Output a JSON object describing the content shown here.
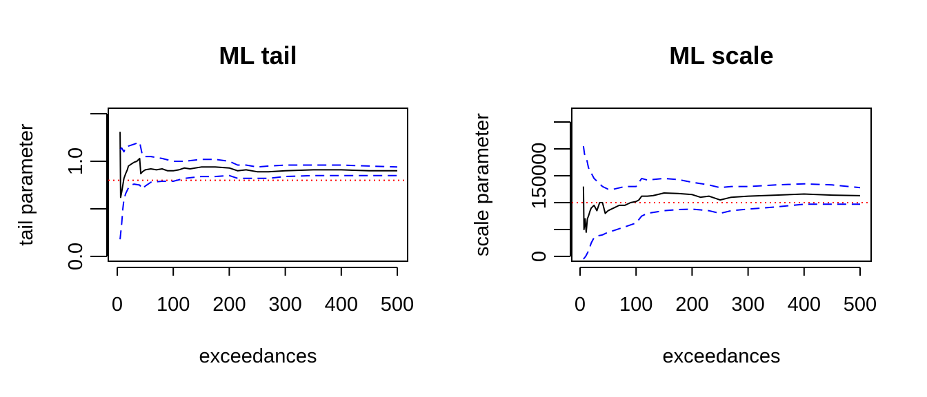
{
  "chart_data": [
    {
      "type": "line",
      "title": "ML tail",
      "xlabel": "exceedances",
      "ylabel": "tail parameter",
      "xlim": [
        0,
        500
      ],
      "ylim": [
        0.0,
        1.5
      ],
      "x_ticks": [
        0,
        100,
        200,
        300,
        400,
        500
      ],
      "x_tick_labels": [
        "0",
        "100",
        "200",
        "300",
        "400",
        "500"
      ],
      "y_ticks": [
        0.0,
        0.5,
        1.0,
        1.5
      ],
      "y_tick_labels": [
        "0.0",
        "",
        "1.0",
        ""
      ],
      "legend": "none",
      "grid": false,
      "reference_line": {
        "y": 0.8,
        "color": "#ff0000",
        "style": "dotted"
      },
      "series": [
        {
          "role": "estimate",
          "color": "#000000",
          "style": "solid",
          "x": [
            5,
            6,
            8,
            10,
            12,
            15,
            18,
            20,
            25,
            30,
            35,
            40,
            42,
            45,
            50,
            60,
            70,
            80,
            90,
            100,
            110,
            120,
            130,
            150,
            175,
            200,
            215,
            230,
            250,
            270,
            300,
            350,
            400,
            450,
            500
          ],
          "y": [
            1.31,
            0.62,
            0.68,
            0.75,
            0.82,
            0.87,
            0.91,
            0.95,
            0.97,
            0.99,
            1.0,
            1.03,
            0.87,
            0.89,
            0.91,
            0.92,
            0.91,
            0.92,
            0.9,
            0.9,
            0.91,
            0.93,
            0.92,
            0.94,
            0.94,
            0.93,
            0.9,
            0.91,
            0.89,
            0.89,
            0.9,
            0.91,
            0.91,
            0.9,
            0.9
          ]
        },
        {
          "role": "upper",
          "color": "#0000ff",
          "style": "dashed",
          "x": [
            5,
            8,
            12,
            15,
            20,
            30,
            40,
            45,
            50,
            60,
            80,
            100,
            120,
            150,
            175,
            200,
            215,
            230,
            250,
            270,
            300,
            350,
            400,
            450,
            500
          ],
          "y": [
            1.12,
            1.14,
            1.1,
            1.15,
            1.16,
            1.18,
            1.2,
            1.06,
            1.05,
            1.05,
            1.03,
            1.0,
            1.0,
            1.02,
            1.02,
            1.0,
            0.96,
            0.96,
            0.94,
            0.95,
            0.96,
            0.96,
            0.96,
            0.95,
            0.94
          ]
        },
        {
          "role": "lower",
          "color": "#0000ff",
          "style": "dashed",
          "x": [
            5,
            8,
            10,
            12,
            15,
            20,
            25,
            30,
            40,
            45,
            50,
            60,
            80,
            100,
            120,
            150,
            175,
            200,
            215,
            230,
            250,
            270,
            300,
            350,
            400,
            450,
            500
          ],
          "y": [
            0.18,
            0.35,
            0.5,
            0.6,
            0.66,
            0.72,
            0.75,
            0.76,
            0.75,
            0.71,
            0.74,
            0.78,
            0.79,
            0.79,
            0.82,
            0.84,
            0.84,
            0.85,
            0.82,
            0.82,
            0.82,
            0.82,
            0.84,
            0.85,
            0.85,
            0.85,
            0.85
          ]
        }
      ]
    },
    {
      "type": "line",
      "title": "ML scale",
      "xlabel": "exceedances",
      "ylabel": "scale parameter",
      "xlim": [
        0,
        500
      ],
      "ylim": [
        0,
        250000
      ],
      "x_ticks": [
        0,
        100,
        200,
        300,
        400,
        500
      ],
      "x_tick_labels": [
        "0",
        "100",
        "200",
        "300",
        "400",
        "500"
      ],
      "y_ticks": [
        0,
        50000,
        100000,
        150000,
        200000,
        250000
      ],
      "y_tick_labels": [
        "0",
        "",
        "",
        "150000",
        "",
        ""
      ],
      "legend": "none",
      "grid": false,
      "reference_line": {
        "y": 100000,
        "color": "#ff0000",
        "style": "dotted"
      },
      "series": [
        {
          "role": "estimate",
          "color": "#000000",
          "style": "solid",
          "x": [
            6,
            7,
            9,
            11,
            13,
            15,
            18,
            20,
            25,
            30,
            35,
            40,
            45,
            50,
            60,
            70,
            80,
            90,
            100,
            105,
            110,
            120,
            130,
            150,
            175,
            200,
            215,
            230,
            250,
            270,
            300,
            350,
            400,
            450,
            500
          ],
          "y": [
            130000,
            50000,
            70000,
            45000,
            70000,
            75000,
            85000,
            90000,
            95000,
            85000,
            100000,
            100000,
            80000,
            85000,
            90000,
            95000,
            95000,
            100000,
            102000,
            105000,
            112000,
            112000,
            113000,
            118000,
            117000,
            115000,
            110000,
            112000,
            105000,
            110000,
            112000,
            114000,
            116000,
            114000,
            113000
          ]
        },
        {
          "role": "upper",
          "color": "#0000ff",
          "style": "dashed",
          "x": [
            6,
            8,
            12,
            15,
            20,
            25,
            30,
            40,
            50,
            60,
            80,
            100,
            110,
            120,
            150,
            175,
            200,
            230,
            250,
            270,
            300,
            350,
            400,
            450,
            500
          ],
          "y": [
            205000,
            190000,
            180000,
            165000,
            155000,
            145000,
            140000,
            130000,
            125000,
            125000,
            130000,
            130000,
            145000,
            142000,
            145000,
            143000,
            138000,
            133000,
            128000,
            130000,
            130000,
            133000,
            135000,
            133000,
            128000
          ]
        },
        {
          "role": "lower",
          "color": "#0000ff",
          "style": "dashed",
          "x": [
            6,
            10,
            15,
            20,
            25,
            30,
            40,
            50,
            60,
            80,
            100,
            110,
            120,
            150,
            175,
            200,
            230,
            250,
            270,
            300,
            350,
            400,
            450,
            500
          ],
          "y": [
            -5000,
            0,
            10000,
            25000,
            35000,
            38000,
            40000,
            45000,
            48000,
            55000,
            62000,
            75000,
            80000,
            85000,
            87000,
            88000,
            85000,
            80000,
            85000,
            88000,
            92000,
            97000,
            97000,
            97000
          ]
        }
      ]
    }
  ]
}
